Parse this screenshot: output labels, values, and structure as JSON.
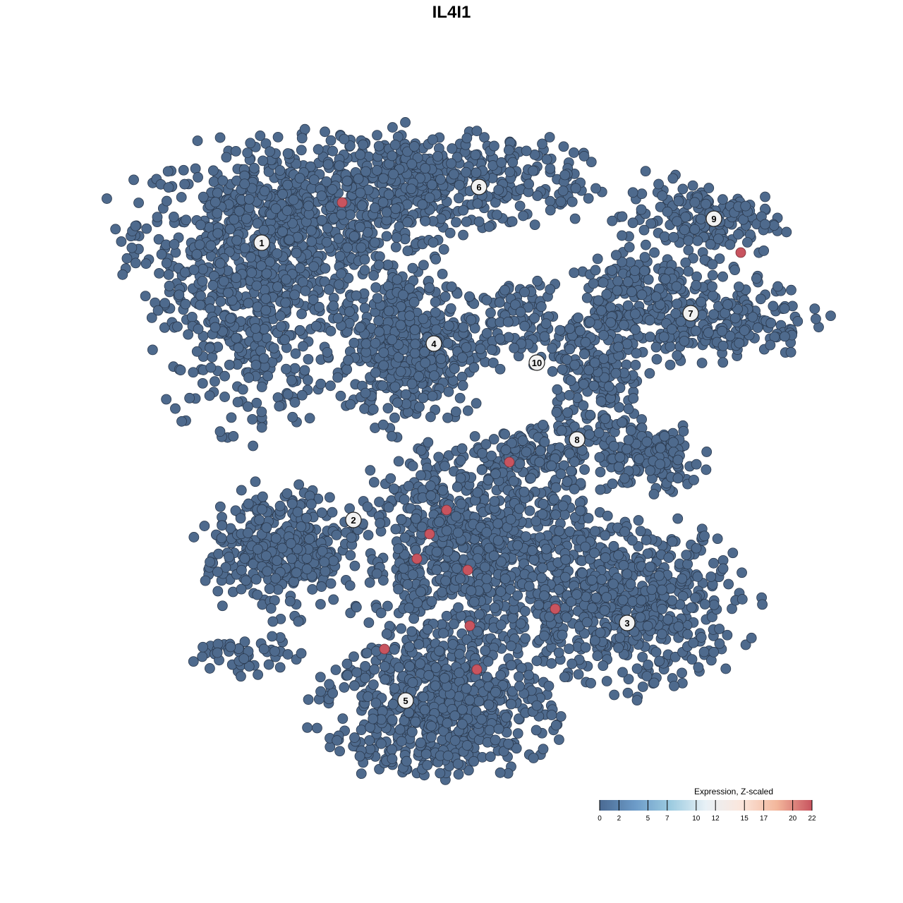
{
  "chart_data": {
    "type": "scatter",
    "title": "IL4I1",
    "xlabel": "",
    "ylabel": "",
    "grid": false,
    "axes_visible": false,
    "colors": {
      "low": "#4e6a8d",
      "high": "#c8545f",
      "stroke": "#2b3a4f"
    },
    "point_clouds_note": "",
    "clusters": [
      {
        "label": "1",
        "x": -26.9,
        "y": 29.6
      },
      {
        "label": "2",
        "x": -13.9,
        "y": -9.7
      },
      {
        "label": "3",
        "x": 24.9,
        "y": -24.3
      },
      {
        "label": "4",
        "x": -2.5,
        "y": 15.3
      },
      {
        "label": "5",
        "x": -6.5,
        "y": -35.3
      },
      {
        "label": "6",
        "x": 3.9,
        "y": 37.5
      },
      {
        "label": "7",
        "x": 33.9,
        "y": 19.6
      },
      {
        "label": "8",
        "x": 17.8,
        "y": 1.7
      },
      {
        "label": "9",
        "x": 37.2,
        "y": 33.0
      },
      {
        "label": "10",
        "x": 12.1,
        "y": 12.6
      }
    ],
    "regions": [
      {
        "cluster": "1",
        "x": -24,
        "y": 31,
        "sx": 17,
        "sy": 10,
        "n": 700,
        "value": 0
      },
      {
        "cluster": "1",
        "x": -29,
        "y": 18,
        "sx": 10,
        "sy": 12,
        "n": 350,
        "value": 0
      },
      {
        "cluster": "6",
        "x": -4,
        "y": 38,
        "sx": 18,
        "sy": 6,
        "n": 500,
        "value": 0
      },
      {
        "cluster": "4",
        "x": -6,
        "y": 15,
        "sx": 8,
        "sy": 9,
        "n": 420,
        "value": 0
      },
      {
        "cluster": "10",
        "x": 10,
        "y": 18,
        "sx": 7,
        "sy": 5,
        "n": 120,
        "value": 0
      },
      {
        "cluster": "9",
        "x": 35,
        "y": 33,
        "sx": 9,
        "sy": 4.5,
        "n": 170,
        "value": 0
      },
      {
        "cluster": "7",
        "x": 35,
        "y": 19,
        "sx": 13,
        "sy": 5,
        "n": 300,
        "value": 0
      },
      {
        "cluster": "7",
        "x": 26,
        "y": 24,
        "sx": 6,
        "sy": 4,
        "n": 100,
        "value": 0
      },
      {
        "cluster": "8",
        "x": 21,
        "y": 10,
        "sx": 5,
        "sy": 8,
        "n": 180,
        "value": 0
      },
      {
        "cluster": "8",
        "x": 28,
        "y": -1,
        "sx": 6,
        "sy": 4,
        "n": 150,
        "value": 0
      },
      {
        "cluster": "8",
        "x": 13,
        "y": 0,
        "sx": 8,
        "sy": 3,
        "n": 120,
        "value": 0
      },
      {
        "cluster": "2",
        "x": -24,
        "y": -14,
        "sx": 9,
        "sy": 7,
        "n": 350,
        "value": 0
      },
      {
        "cluster": "5",
        "x": 4,
        "y": -14,
        "sx": 14,
        "sy": 12,
        "n": 900,
        "value": 0
      },
      {
        "cluster": "3",
        "x": 26,
        "y": -22,
        "sx": 12,
        "sy": 9,
        "n": 550,
        "value": 0
      },
      {
        "cluster": "5",
        "x": -2,
        "y": -36,
        "sx": 13,
        "sy": 8,
        "n": 650,
        "value": 0
      },
      {
        "cluster": "2",
        "x": -29,
        "y": -29,
        "sx": 6,
        "sy": 2.5,
        "n": 50,
        "value": 0
      }
    ],
    "highlighted_points": [
      {
        "x": -15.5,
        "y": 35.3,
        "value": 22
      },
      {
        "x": 41.0,
        "y": 28.2,
        "value": 22
      },
      {
        "x": 8.2,
        "y": -1.5,
        "value": 22
      },
      {
        "x": -0.7,
        "y": -8.3,
        "value": 22
      },
      {
        "x": -3.1,
        "y": -11.7,
        "value": 22
      },
      {
        "x": -4.9,
        "y": -15.2,
        "value": 22
      },
      {
        "x": 2.3,
        "y": -16.8,
        "value": 22
      },
      {
        "x": 14.7,
        "y": -22.3,
        "value": 22
      },
      {
        "x": 2.6,
        "y": -24.7,
        "value": 22
      },
      {
        "x": -9.5,
        "y": -28.0,
        "value": 22
      },
      {
        "x": 3.6,
        "y": -30.9,
        "value": 22
      }
    ],
    "legend": {
      "title": "Expression, Z-scaled",
      "placement": "bottom-right",
      "range": [
        0,
        22
      ],
      "ticks": [
        "0",
        "2",
        "5",
        "7",
        "10",
        "12",
        "15",
        "17",
        "20",
        "22"
      ],
      "gradient": [
        "#4a6a93",
        "#6c9bc8",
        "#9ccbe0",
        "#e8f1f6",
        "#fbe6dc",
        "#f3b79c",
        "#c8545f"
      ]
    }
  }
}
